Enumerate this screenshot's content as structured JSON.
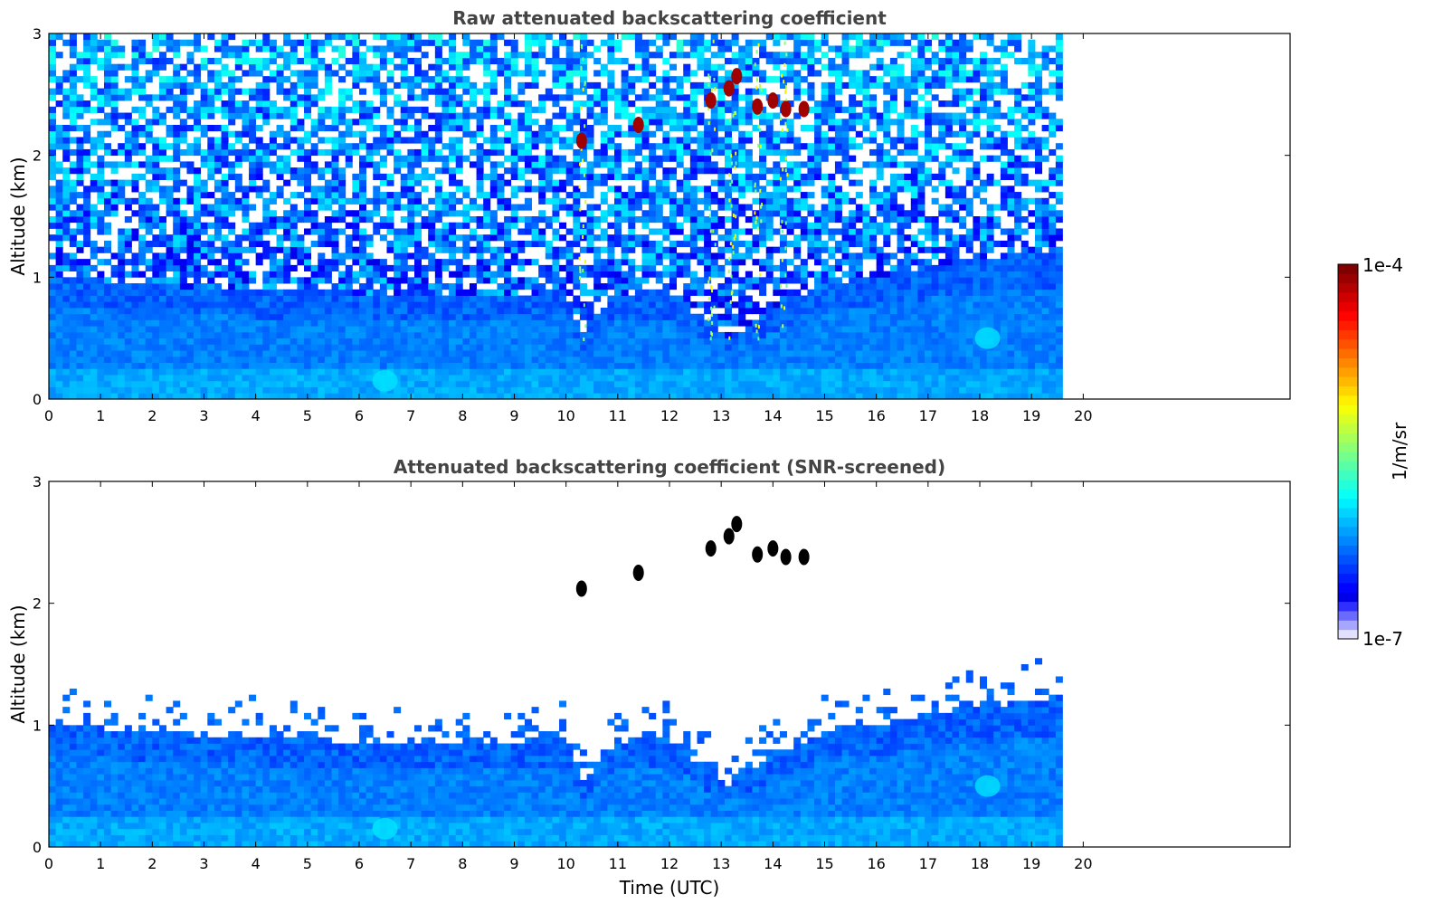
{
  "chart_data": [
    {
      "type": "heatmap",
      "title": "Raw attenuated backscattering coefficient",
      "xlabel": "",
      "ylabel": "Altitude (km)",
      "xlim": [
        0,
        24
      ],
      "ylim": [
        0,
        3
      ],
      "xticks": [
        "0",
        "1",
        "2",
        "3",
        "4",
        "5",
        "6",
        "7",
        "8",
        "9",
        "10",
        "11",
        "12",
        "13",
        "14",
        "15",
        "16",
        "17",
        "18",
        "19",
        "20"
      ],
      "yticks": [
        "0",
        "1",
        "2",
        "3"
      ],
      "data_extent_hours": [
        0,
        19.6
      ],
      "cloud_features": [
        {
          "x": 10.3,
          "y": 2.12
        },
        {
          "x": 11.4,
          "y": 2.25
        },
        {
          "x": 12.8,
          "y": 2.45
        },
        {
          "x": 13.15,
          "y": 2.55
        },
        {
          "x": 13.3,
          "y": 2.65
        },
        {
          "x": 13.7,
          "y": 2.4
        },
        {
          "x": 14.0,
          "y": 2.45
        },
        {
          "x": 14.25,
          "y": 2.38
        },
        {
          "x": 14.6,
          "y": 2.38
        }
      ],
      "plumes": [
        {
          "x": 18.15,
          "y": 0.5
        },
        {
          "x": 6.5,
          "y": 0.15
        }
      ]
    },
    {
      "type": "heatmap",
      "title": "Attenuated backscattering coefficient (SNR-screened)",
      "xlabel": "Time (UTC)",
      "ylabel": "Altitude (km)",
      "xlim": [
        0,
        24
      ],
      "ylim": [
        0,
        3
      ],
      "xticks": [
        "0",
        "1",
        "2",
        "3",
        "4",
        "5",
        "6",
        "7",
        "8",
        "9",
        "10",
        "11",
        "12",
        "13",
        "14",
        "15",
        "16",
        "17",
        "18",
        "19",
        "20"
      ],
      "yticks": [
        "0",
        "1",
        "2",
        "3"
      ],
      "data_extent_hours": [
        0,
        19.6
      ],
      "boundary_layer_top_km": [
        [
          0,
          1.0
        ],
        [
          1,
          0.98
        ],
        [
          2,
          0.93
        ],
        [
          3,
          0.92
        ],
        [
          4,
          0.9
        ],
        [
          5,
          0.9
        ],
        [
          6,
          0.85
        ],
        [
          7,
          0.85
        ],
        [
          8,
          0.85
        ],
        [
          9,
          0.85
        ],
        [
          10,
          0.9
        ],
        [
          10.3,
          0.55
        ],
        [
          11,
          0.85
        ],
        [
          12,
          0.9
        ],
        [
          12.8,
          0.6
        ],
        [
          13.1,
          0.5
        ],
        [
          13.5,
          0.6
        ],
        [
          14,
          0.75
        ],
        [
          15,
          0.95
        ],
        [
          16,
          1.0
        ],
        [
          17,
          1.1
        ],
        [
          18,
          1.15
        ],
        [
          19,
          1.2
        ],
        [
          19.6,
          1.25
        ]
      ]
    }
  ],
  "colorbar": {
    "label": "1/m/sr",
    "max_label": "1e-4",
    "min_label": "1e-7",
    "colormap": "jet",
    "scale": "log"
  }
}
